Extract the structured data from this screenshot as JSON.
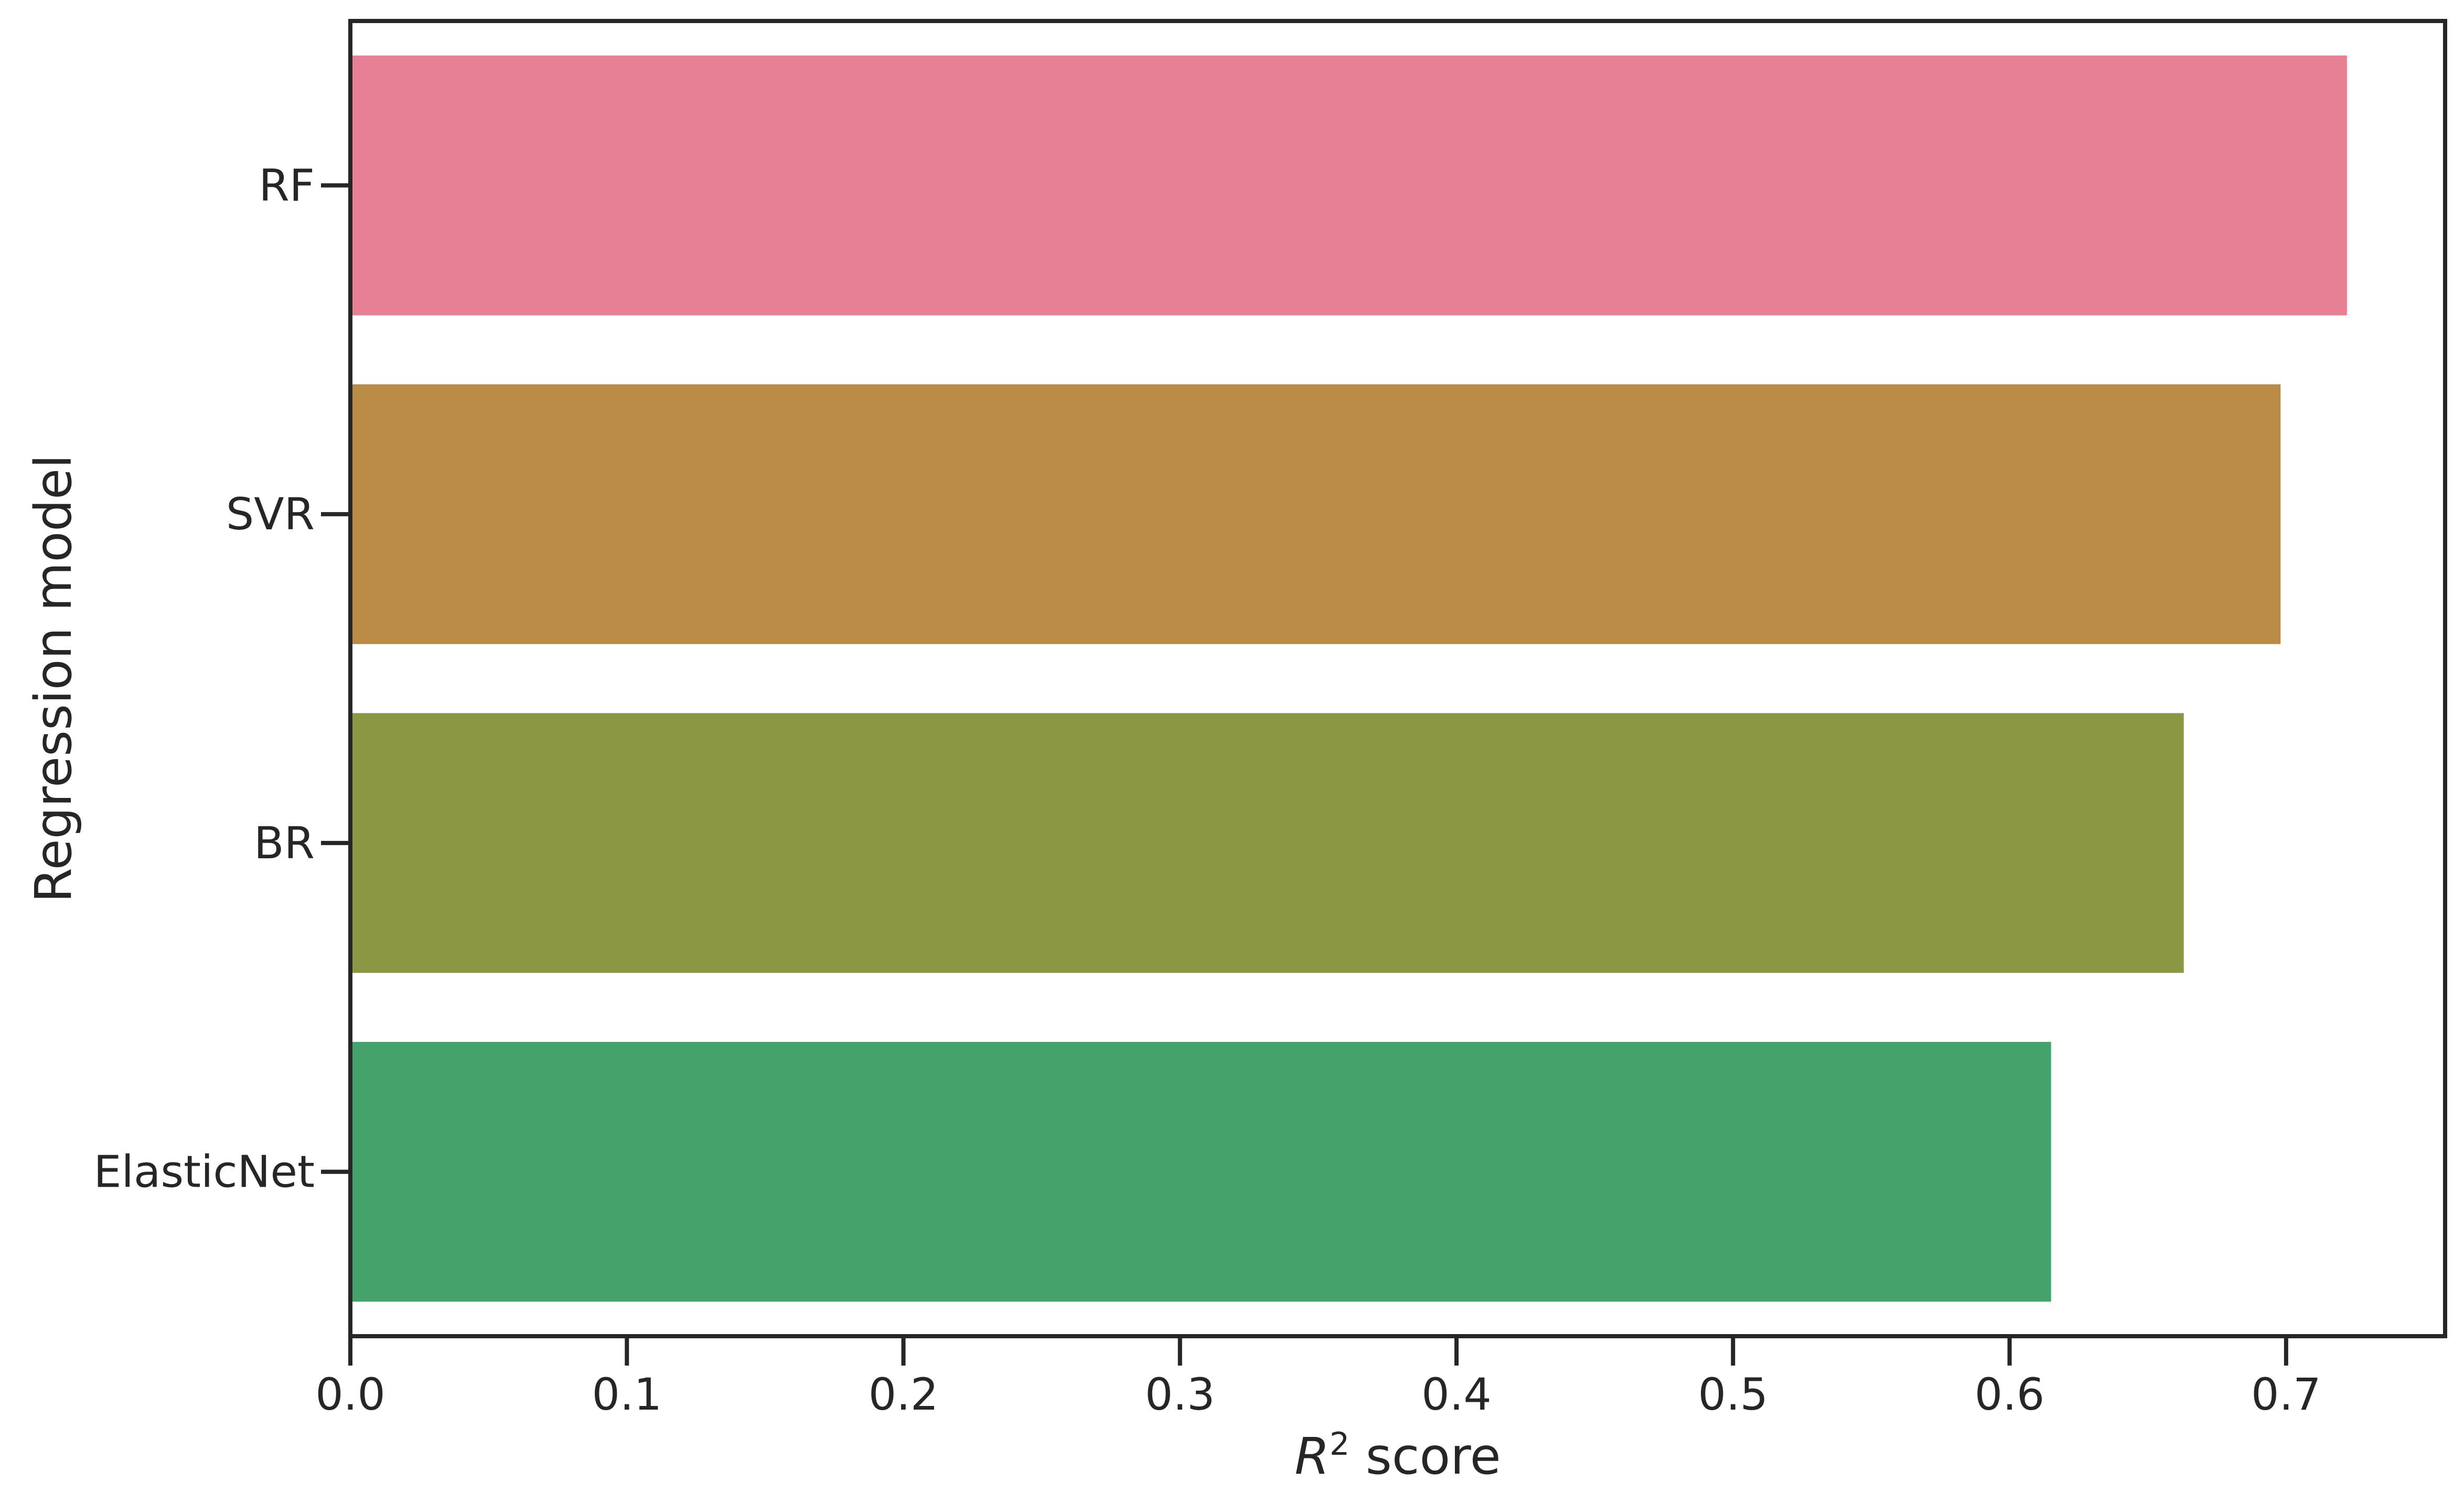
{
  "chart_data": {
    "type": "bar",
    "orientation": "horizontal",
    "categories": [
      "RF",
      "SVR",
      "BR",
      "ElasticNet"
    ],
    "values": [
      0.722,
      0.698,
      0.663,
      0.615
    ],
    "colors": [
      "#e88093",
      "#ba8b46",
      "#8c9743",
      "#44a26b"
    ],
    "xlabel_var": "R",
    "xlabel_exp": "2",
    "xlabel_rest": " score",
    "ylabel": "Regression model",
    "xlim": [
      0.0,
      0.7575
    ],
    "xticks": [
      0.0,
      0.1,
      0.2,
      0.3,
      0.4,
      0.5,
      0.6,
      0.7
    ],
    "xtick_labels": [
      "0.0",
      "0.1",
      "0.2",
      "0.3",
      "0.4",
      "0.5",
      "0.6",
      "0.7"
    ],
    "grid": false,
    "legend": "none",
    "axis_color": "#262626"
  }
}
